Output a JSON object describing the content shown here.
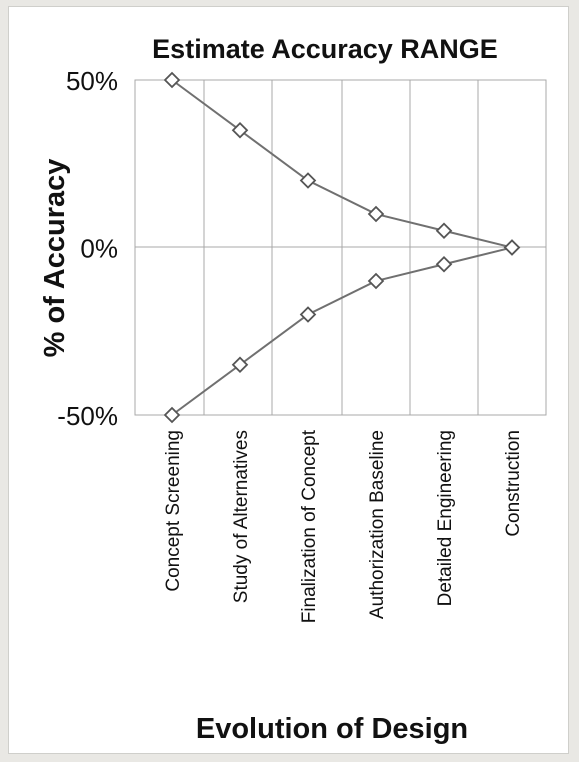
{
  "chart_data": {
    "type": "line",
    "title": "Estimate Accuracy RANGE",
    "xlabel": "Evolution of Design",
    "ylabel": "% of Accuracy",
    "categories": [
      "Concept Screening",
      "Study of Alternatives",
      "Finalization of Concept",
      "Authorization Baseline",
      "Detailed Engineering",
      "Construction"
    ],
    "y_tick_labels": [
      "50%",
      "0%",
      "-50%"
    ],
    "y_ticks": [
      50,
      0,
      -50
    ],
    "ylim": [
      -50,
      50
    ],
    "series": [
      {
        "values": [
          50,
          35,
          20,
          10,
          5,
          0
        ]
      },
      {
        "values": [
          -50,
          -35,
          -20,
          -10,
          -5,
          0
        ]
      }
    ],
    "marker": "open-diamond",
    "grid": "vertical-only",
    "line_color": "#707070"
  }
}
